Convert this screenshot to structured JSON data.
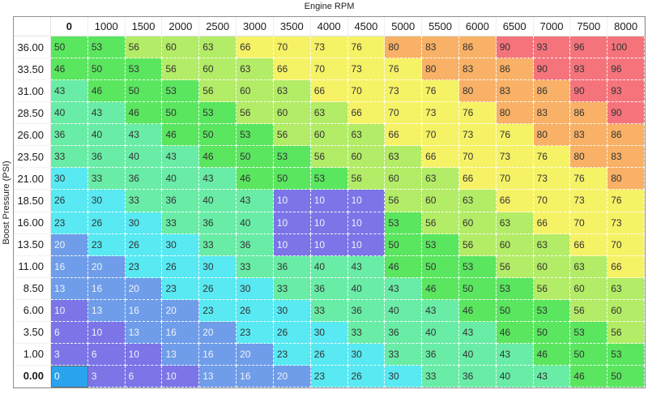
{
  "axes": {
    "x_title": "Engine RPM",
    "y_title": "Boost Pressure (PSI)"
  },
  "table": {
    "columns": [
      "0",
      "1000",
      "1500",
      "2000",
      "2500",
      "3000",
      "3500",
      "4000",
      "4500",
      "5000",
      "5500",
      "6000",
      "6500",
      "7000",
      "7500",
      "8000"
    ],
    "rows": [
      {
        "label": "36.00",
        "values": [
          50,
          53,
          56,
          60,
          63,
          66,
          70,
          73,
          76,
          80,
          83,
          86,
          90,
          93,
          96,
          100
        ]
      },
      {
        "label": "33.50",
        "values": [
          46,
          50,
          53,
          56,
          60,
          63,
          66,
          70,
          73,
          76,
          80,
          83,
          86,
          90,
          93,
          96
        ]
      },
      {
        "label": "31.00",
        "values": [
          43,
          46,
          50,
          53,
          56,
          60,
          63,
          66,
          70,
          73,
          76,
          80,
          83,
          86,
          90,
          93
        ]
      },
      {
        "label": "28.50",
        "values": [
          40,
          43,
          46,
          50,
          53,
          56,
          60,
          63,
          66,
          70,
          73,
          76,
          80,
          83,
          86,
          90
        ]
      },
      {
        "label": "26.00",
        "values": [
          36,
          40,
          43,
          46,
          50,
          53,
          56,
          60,
          63,
          66,
          70,
          73,
          76,
          80,
          83,
          86
        ]
      },
      {
        "label": "23.50",
        "values": [
          33,
          36,
          40,
          43,
          46,
          50,
          53,
          56,
          60,
          63,
          66,
          70,
          73,
          76,
          80,
          83
        ]
      },
      {
        "label": "21.00",
        "values": [
          30,
          33,
          36,
          40,
          43,
          46,
          50,
          53,
          56,
          60,
          63,
          66,
          70,
          73,
          76,
          80
        ]
      },
      {
        "label": "18.50",
        "values": [
          26,
          30,
          33,
          36,
          40,
          43,
          10,
          10,
          10,
          56,
          60,
          63,
          66,
          70,
          73,
          76
        ]
      },
      {
        "label": "16.00",
        "values": [
          23,
          26,
          30,
          33,
          36,
          40,
          10,
          10,
          10,
          53,
          56,
          60,
          63,
          66,
          70,
          73
        ]
      },
      {
        "label": "13.50",
        "values": [
          20,
          23,
          26,
          30,
          33,
          36,
          10,
          10,
          10,
          50,
          53,
          56,
          60,
          63,
          66,
          70
        ]
      },
      {
        "label": "11.00",
        "values": [
          16,
          20,
          23,
          26,
          30,
          33,
          36,
          40,
          43,
          46,
          50,
          53,
          56,
          60,
          63,
          66
        ]
      },
      {
        "label": "8.50",
        "values": [
          13,
          16,
          20,
          23,
          26,
          30,
          33,
          36,
          40,
          43,
          46,
          50,
          53,
          56,
          60,
          63
        ]
      },
      {
        "label": "6.00",
        "values": [
          10,
          13,
          16,
          20,
          23,
          26,
          30,
          33,
          36,
          40,
          43,
          46,
          50,
          53,
          56,
          60
        ]
      },
      {
        "label": "3.50",
        "values": [
          6,
          10,
          13,
          16,
          20,
          23,
          26,
          30,
          33,
          36,
          40,
          43,
          46,
          50,
          53,
          56
        ]
      },
      {
        "label": "1.00",
        "values": [
          3,
          6,
          10,
          13,
          16,
          20,
          23,
          26,
          30,
          33,
          36,
          40,
          43,
          46,
          50,
          53
        ]
      },
      {
        "label": "0.00",
        "values": [
          0,
          3,
          6,
          10,
          13,
          16,
          20,
          23,
          26,
          30,
          33,
          36,
          40,
          43,
          46,
          50
        ]
      }
    ]
  },
  "selection": {
    "row_label": "0.00",
    "column_label": "0",
    "row_index": 15,
    "col_index": 0,
    "bg": "#29a3ee",
    "border": "#5f6f77",
    "fg": "#ffffff"
  },
  "color_scale": [
    {
      "name": "purple",
      "max": 12,
      "bg": "#7b75e8",
      "fg": "#eef3fa"
    },
    {
      "name": "cornflower",
      "max": 22,
      "bg": "#6f9de9",
      "fg": "#eef3fa"
    },
    {
      "name": "cyan",
      "max": 32,
      "bg": "#58e9f2",
      "fg": "#333333"
    },
    {
      "name": "mint",
      "max": 45,
      "bg": "#69eca6",
      "fg": "#333333"
    },
    {
      "name": "green",
      "max": 55,
      "bg": "#5ae65f",
      "fg": "#333333"
    },
    {
      "name": "yellow-green",
      "max": 65,
      "bg": "#b3ec66",
      "fg": "#333333"
    },
    {
      "name": "yellow",
      "max": 79,
      "bg": "#f6f266",
      "fg": "#333333"
    },
    {
      "name": "orange",
      "max": 89,
      "bg": "#f8b166",
      "fg": "#333333"
    },
    {
      "name": "red",
      "max": 100,
      "bg": "#f5747c",
      "fg": "#333333"
    }
  ],
  "colors": {
    "table_border": "#8f8f8f",
    "header_text": "#1b1b1b",
    "grid_dash": "#ffffff"
  }
}
